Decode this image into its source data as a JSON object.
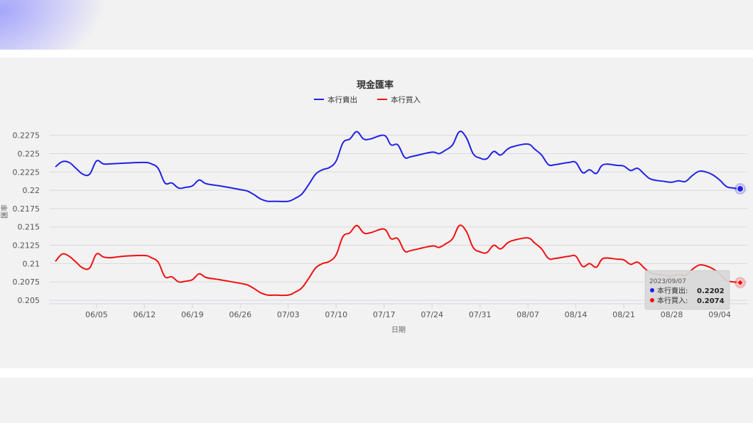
{
  "colors": {
    "sell": "#2020e6",
    "buy": "#f01010",
    "grid": "#d9d9d9",
    "panel": "#f2f2f2"
  },
  "chart_data": {
    "type": "line",
    "title": "現金匯率",
    "xlabel": "日期",
    "ylabel": "匯率",
    "legend_position": "top-center",
    "grid": true,
    "ylim": [
      0.205,
      0.2295
    ],
    "yticks": [
      "0.205",
      "0.2075",
      "0.21",
      "0.2125",
      "0.215",
      "0.2175",
      "0.22",
      "0.2225",
      "0.225",
      "0.2275"
    ],
    "xrange": [
      "2023-05-30",
      "2023-09-07"
    ],
    "xticks": [
      {
        "date": "2023-06-05",
        "label": "06/05"
      },
      {
        "date": "2023-06-12",
        "label": "06/12"
      },
      {
        "date": "2023-06-19",
        "label": "06/19"
      },
      {
        "date": "2023-06-26",
        "label": "06/26"
      },
      {
        "date": "2023-07-03",
        "label": "07/03"
      },
      {
        "date": "2023-07-10",
        "label": "07/10"
      },
      {
        "date": "2023-07-17",
        "label": "07/17"
      },
      {
        "date": "2023-07-24",
        "label": "07/24"
      },
      {
        "date": "2023-07-31",
        "label": "07/31"
      },
      {
        "date": "2023-08-07",
        "label": "08/07"
      },
      {
        "date": "2023-08-14",
        "label": "08/14"
      },
      {
        "date": "2023-08-21",
        "label": "08/21"
      },
      {
        "date": "2023-08-28",
        "label": "08/28"
      },
      {
        "date": "2023-09-04",
        "label": "09/04"
      }
    ],
    "series": [
      {
        "name": "本行賣出",
        "points": [
          [
            "2023-05-30",
            0.2232
          ],
          [
            "2023-05-31",
            0.2239
          ],
          [
            "2023-06-01",
            0.2238
          ],
          [
            "2023-06-02",
            0.223
          ],
          [
            "2023-06-03",
            0.2222
          ],
          [
            "2023-06-04",
            0.2222
          ],
          [
            "2023-06-05",
            0.224
          ],
          [
            "2023-06-06",
            0.2236
          ],
          [
            "2023-06-07",
            0.2236
          ],
          [
            "2023-06-09",
            0.2237
          ],
          [
            "2023-06-12",
            0.2238
          ],
          [
            "2023-06-13",
            0.2236
          ],
          [
            "2023-06-14",
            0.223
          ],
          [
            "2023-06-15",
            0.221
          ],
          [
            "2023-06-16",
            0.221
          ],
          [
            "2023-06-17",
            0.2203
          ],
          [
            "2023-06-18",
            0.2204
          ],
          [
            "2023-06-19",
            0.2206
          ],
          [
            "2023-06-20",
            0.2214
          ],
          [
            "2023-06-21",
            0.2209
          ],
          [
            "2023-06-23",
            0.2206
          ],
          [
            "2023-06-26",
            0.2201
          ],
          [
            "2023-06-27",
            0.2199
          ],
          [
            "2023-06-28",
            0.2194
          ],
          [
            "2023-06-29",
            0.2188
          ],
          [
            "2023-06-30",
            0.2185
          ],
          [
            "2023-07-01",
            0.2185
          ],
          [
            "2023-07-03",
            0.2185
          ],
          [
            "2023-07-04",
            0.2189
          ],
          [
            "2023-07-05",
            0.2195
          ],
          [
            "2023-07-06",
            0.2208
          ],
          [
            "2023-07-07",
            0.2222
          ],
          [
            "2023-07-08",
            0.2228
          ],
          [
            "2023-07-09",
            0.2231
          ],
          [
            "2023-07-10",
            0.224
          ],
          [
            "2023-07-11",
            0.2265
          ],
          [
            "2023-07-12",
            0.227
          ],
          [
            "2023-07-13",
            0.228
          ],
          [
            "2023-07-14",
            0.227
          ],
          [
            "2023-07-15",
            0.227
          ],
          [
            "2023-07-17",
            0.2275
          ],
          [
            "2023-07-18",
            0.2262
          ],
          [
            "2023-07-19",
            0.2262
          ],
          [
            "2023-07-20",
            0.2245
          ],
          [
            "2023-07-21",
            0.2246
          ],
          [
            "2023-07-24",
            0.2252
          ],
          [
            "2023-07-25",
            0.225
          ],
          [
            "2023-07-26",
            0.2255
          ],
          [
            "2023-07-27",
            0.2262
          ],
          [
            "2023-07-28",
            0.228
          ],
          [
            "2023-07-29",
            0.2272
          ],
          [
            "2023-07-30",
            0.225
          ],
          [
            "2023-07-31",
            0.2244
          ],
          [
            "2023-08-01",
            0.2243
          ],
          [
            "2023-08-02",
            0.2253
          ],
          [
            "2023-08-03",
            0.2248
          ],
          [
            "2023-08-04",
            0.2256
          ],
          [
            "2023-08-05",
            0.226
          ],
          [
            "2023-08-07",
            0.2263
          ],
          [
            "2023-08-08",
            0.2256
          ],
          [
            "2023-08-09",
            0.2248
          ],
          [
            "2023-08-10",
            0.2235
          ],
          [
            "2023-08-11",
            0.2235
          ],
          [
            "2023-08-13",
            0.2238
          ],
          [
            "2023-08-14",
            0.2238
          ],
          [
            "2023-08-15",
            0.2224
          ],
          [
            "2023-08-16",
            0.2228
          ],
          [
            "2023-08-17",
            0.2223
          ],
          [
            "2023-08-18",
            0.2235
          ],
          [
            "2023-08-20",
            0.2234
          ],
          [
            "2023-08-21",
            0.2233
          ],
          [
            "2023-08-22",
            0.2227
          ],
          [
            "2023-08-23",
            0.223
          ],
          [
            "2023-08-24",
            0.2222
          ],
          [
            "2023-08-25",
            0.2215
          ],
          [
            "2023-08-27",
            0.2212
          ],
          [
            "2023-08-28",
            0.2211
          ],
          [
            "2023-08-29",
            0.2213
          ],
          [
            "2023-08-30",
            0.2212
          ],
          [
            "2023-08-31",
            0.222
          ],
          [
            "2023-09-01",
            0.2226
          ],
          [
            "2023-09-02",
            0.2225
          ],
          [
            "2023-09-03",
            0.2221
          ],
          [
            "2023-09-04",
            0.2214
          ],
          [
            "2023-09-05",
            0.2205
          ],
          [
            "2023-09-06",
            0.2203
          ],
          [
            "2023-09-07",
            0.2202
          ]
        ]
      },
      {
        "name": "本行買入",
        "points": [
          [
            "2023-05-30",
            0.2103
          ],
          [
            "2023-05-31",
            0.2113
          ],
          [
            "2023-06-01",
            0.211
          ],
          [
            "2023-06-02",
            0.2102
          ],
          [
            "2023-06-03",
            0.2094
          ],
          [
            "2023-06-04",
            0.2094
          ],
          [
            "2023-06-05",
            0.2113
          ],
          [
            "2023-06-06",
            0.2109
          ],
          [
            "2023-06-07",
            0.2108
          ],
          [
            "2023-06-09",
            0.211
          ],
          [
            "2023-06-12",
            0.2111
          ],
          [
            "2023-06-13",
            0.2108
          ],
          [
            "2023-06-14",
            0.2102
          ],
          [
            "2023-06-15",
            0.2082
          ],
          [
            "2023-06-16",
            0.2082
          ],
          [
            "2023-06-17",
            0.2075
          ],
          [
            "2023-06-18",
            0.2076
          ],
          [
            "2023-06-19",
            0.2078
          ],
          [
            "2023-06-20",
            0.2086
          ],
          [
            "2023-06-21",
            0.2081
          ],
          [
            "2023-06-23",
            0.2078
          ],
          [
            "2023-06-26",
            0.2073
          ],
          [
            "2023-06-27",
            0.2071
          ],
          [
            "2023-06-28",
            0.2066
          ],
          [
            "2023-06-29",
            0.206
          ],
          [
            "2023-06-30",
            0.2057
          ],
          [
            "2023-07-01",
            0.2057
          ],
          [
            "2023-07-03",
            0.2057
          ],
          [
            "2023-07-04",
            0.2061
          ],
          [
            "2023-07-05",
            0.2067
          ],
          [
            "2023-07-06",
            0.208
          ],
          [
            "2023-07-07",
            0.2094
          ],
          [
            "2023-07-08",
            0.21
          ],
          [
            "2023-07-09",
            0.2103
          ],
          [
            "2023-07-10",
            0.2112
          ],
          [
            "2023-07-11",
            0.2137
          ],
          [
            "2023-07-12",
            0.2142
          ],
          [
            "2023-07-13",
            0.2152
          ],
          [
            "2023-07-14",
            0.2142
          ],
          [
            "2023-07-15",
            0.2142
          ],
          [
            "2023-07-17",
            0.2147
          ],
          [
            "2023-07-18",
            0.2134
          ],
          [
            "2023-07-19",
            0.2134
          ],
          [
            "2023-07-20",
            0.2117
          ],
          [
            "2023-07-21",
            0.2118
          ],
          [
            "2023-07-24",
            0.2124
          ],
          [
            "2023-07-25",
            0.2122
          ],
          [
            "2023-07-26",
            0.2127
          ],
          [
            "2023-07-27",
            0.2134
          ],
          [
            "2023-07-28",
            0.2152
          ],
          [
            "2023-07-29",
            0.2144
          ],
          [
            "2023-07-30",
            0.2122
          ],
          [
            "2023-07-31",
            0.2116
          ],
          [
            "2023-08-01",
            0.2115
          ],
          [
            "2023-08-02",
            0.2125
          ],
          [
            "2023-08-03",
            0.212
          ],
          [
            "2023-08-04",
            0.2128
          ],
          [
            "2023-08-05",
            0.2132
          ],
          [
            "2023-08-07",
            0.2135
          ],
          [
            "2023-08-08",
            0.2128
          ],
          [
            "2023-08-09",
            0.212
          ],
          [
            "2023-08-10",
            0.2107
          ],
          [
            "2023-08-11",
            0.2107
          ],
          [
            "2023-08-13",
            0.211
          ],
          [
            "2023-08-14",
            0.211
          ],
          [
            "2023-08-15",
            0.2096
          ],
          [
            "2023-08-16",
            0.21
          ],
          [
            "2023-08-17",
            0.2095
          ],
          [
            "2023-08-18",
            0.2107
          ],
          [
            "2023-08-20",
            0.2106
          ],
          [
            "2023-08-21",
            0.2105
          ],
          [
            "2023-08-22",
            0.2099
          ],
          [
            "2023-08-23",
            0.2102
          ],
          [
            "2023-08-24",
            0.2094
          ],
          [
            "2023-08-25",
            0.2087
          ],
          [
            "2023-08-27",
            0.2084
          ],
          [
            "2023-08-28",
            0.2083
          ],
          [
            "2023-08-29",
            0.2085
          ],
          [
            "2023-08-30",
            0.2084
          ],
          [
            "2023-08-31",
            0.2092
          ],
          [
            "2023-09-01",
            0.2098
          ],
          [
            "2023-09-02",
            0.2097
          ],
          [
            "2023-09-03",
            0.2093
          ],
          [
            "2023-09-04",
            0.2086
          ],
          [
            "2023-09-05",
            0.2077
          ],
          [
            "2023-09-06",
            0.2075
          ],
          [
            "2023-09-07",
            0.2074
          ]
        ]
      }
    ],
    "tooltip": {
      "date": "2023/09/07",
      "rows": [
        {
          "label": "本行賣出:",
          "value": "0.2202"
        },
        {
          "label": "本行買入:",
          "value": "0.2074"
        }
      ]
    }
  }
}
